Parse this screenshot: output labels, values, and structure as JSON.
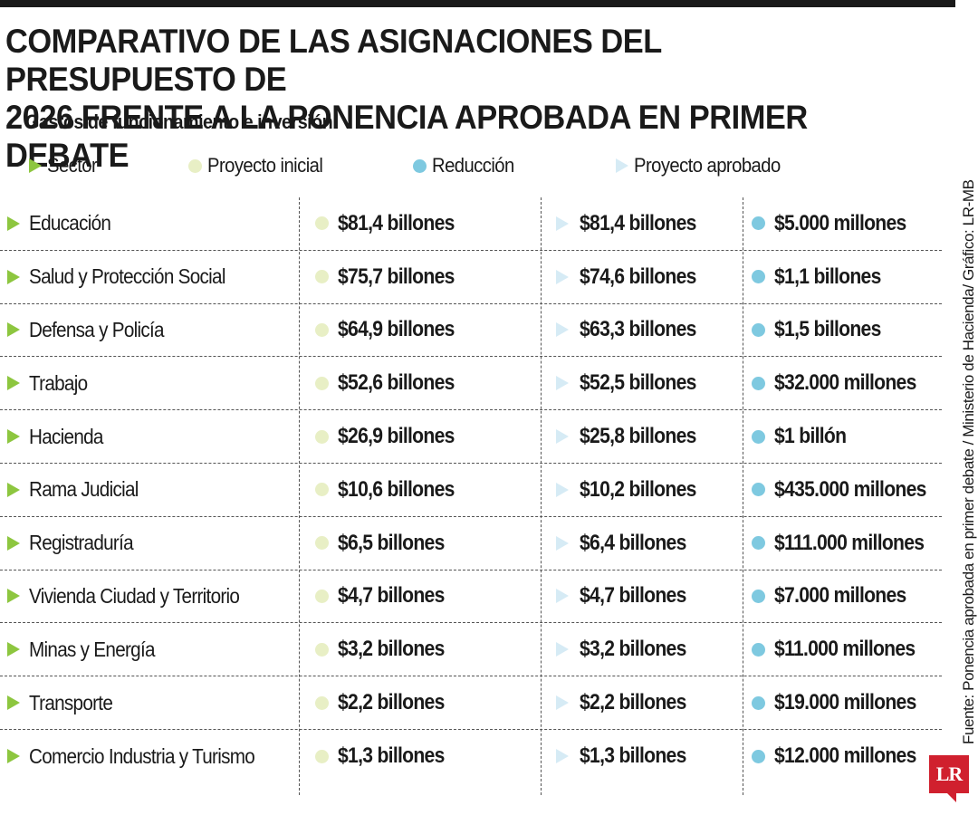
{
  "title_line1": "COMPARATIVO DE LAS ASIGNACIONES DEL PRESUPUESTO DE",
  "title_line2": "2026 FRENTE A LA PONENCIA APROBADA EN PRIMER DEBATE",
  "subtitle": "Gastos de funcionamiento e inversión",
  "legend": {
    "sector": "Sector",
    "initial": "Proyecto inicial",
    "reduction": "Reducción",
    "approved": "Proyecto aprobado"
  },
  "rows": [
    {
      "sector": "Educación",
      "initial": "$81,4 billones",
      "approved": "$81,4 billones",
      "reduction": "$5.000 millones"
    },
    {
      "sector": "Salud y Protección Social",
      "initial": "$75,7 billones",
      "approved": "$74,6 billones",
      "reduction": "$1,1 billones"
    },
    {
      "sector": "Defensa y Policía",
      "initial": "$64,9 billones",
      "approved": "$63,3 billones",
      "reduction": "$1,5 billones"
    },
    {
      "sector": "Trabajo",
      "initial": "$52,6 billones",
      "approved": "$52,5 billones",
      "reduction": "$32.000 millones"
    },
    {
      "sector": "Hacienda",
      "initial": "$26,9 billones",
      "approved": "$25,8 billones",
      "reduction": "$1 billón"
    },
    {
      "sector": "Rama Judicial",
      "initial": "$10,6 billones",
      "approved": "$10,2 billones",
      "reduction": "$435.000 millones"
    },
    {
      "sector": "Registraduría",
      "initial": "$6,5 billones",
      "approved": "$6,4 billones",
      "reduction": "$111.000 millones"
    },
    {
      "sector": "Vivienda Ciudad y Territorio",
      "initial": "$4,7 billones",
      "approved": "$4,7 billones",
      "reduction": "$7.000 millones"
    },
    {
      "sector": "Minas y Energía",
      "initial": "$3,2 billones",
      "approved": "$3,2 billones",
      "reduction": "$11.000 millones"
    },
    {
      "sector": "Transporte",
      "initial": "$2,2 billones",
      "approved": "$2,2 billones",
      "reduction": "$19.000 millones"
    },
    {
      "sector": "Comercio Industria y Turismo",
      "initial": "$1,3 billones",
      "approved": "$1,3 billones",
      "reduction": "$12.000 millones"
    }
  ],
  "source": "Fuente: Ponencia aprobada en primer debate / Ministerio de Hacienda/ Gráfico: LR-MB",
  "logo_text": "LR",
  "colors": {
    "sector_marker": "#8dc63f",
    "initial_marker": "#e8efc5",
    "approved_marker": "#d6ebf5",
    "reduction_marker": "#7ec9e0",
    "logo": "#d0202e"
  }
}
